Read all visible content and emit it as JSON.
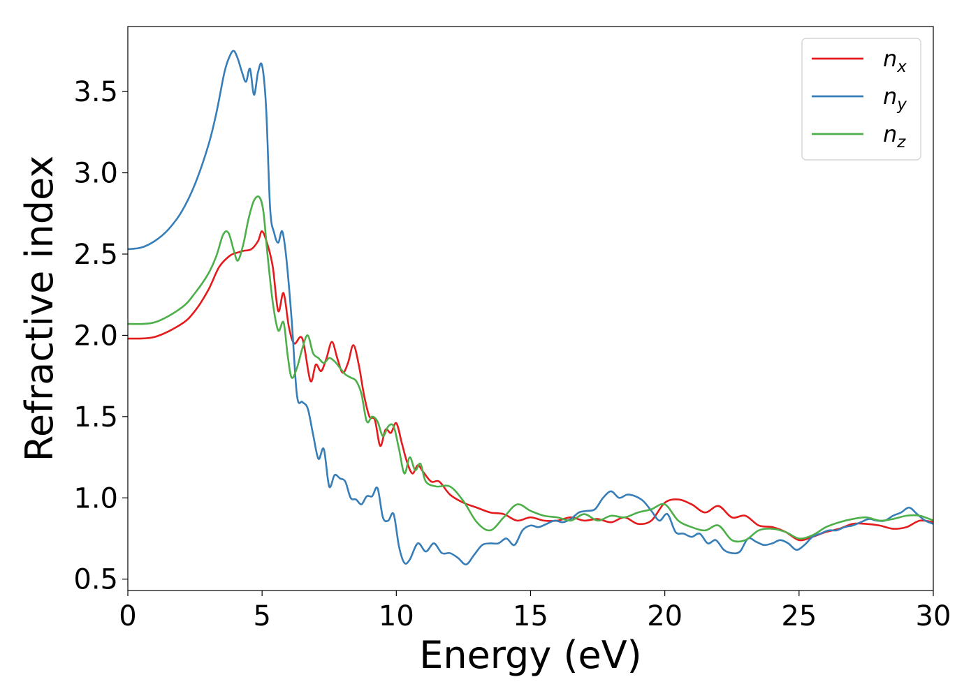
{
  "chart_data": {
    "type": "line",
    "title": "",
    "xlabel": "Energy (eV)",
    "ylabel": "Refractive index",
    "xlim": [
      0,
      30
    ],
    "ylim": [
      0.43,
      3.9
    ],
    "xticks": [
      0,
      5,
      10,
      15,
      20,
      25,
      30
    ],
    "xtick_labels": [
      "0",
      "5",
      "10",
      "15",
      "20",
      "25",
      "30"
    ],
    "yticks": [
      0.5,
      1.0,
      1.5,
      2.0,
      2.5,
      3.0,
      3.5
    ],
    "ytick_labels": [
      "0.5",
      "1.0",
      "1.5",
      "2.0",
      "2.5",
      "3.0",
      "3.5"
    ],
    "grid": false,
    "legend_position": "top-right",
    "series": [
      {
        "name": "n_x",
        "label_base": "n",
        "label_sub": "x",
        "color": "#e41a1c",
        "x": [
          0,
          1,
          2,
          2.5,
          3,
          3.4,
          3.8,
          4.1,
          4.3,
          4.6,
          4.85,
          5.0,
          5.2,
          5.4,
          5.6,
          5.8,
          6.0,
          6.2,
          6.5,
          6.8,
          7.0,
          7.2,
          7.4,
          7.6,
          7.8,
          8.0,
          8.2,
          8.4,
          8.6,
          8.8,
          9.0,
          9.2,
          9.4,
          9.6,
          9.8,
          10.0,
          10.2,
          10.4,
          10.6,
          10.8,
          11.0,
          11.3,
          11.6,
          12.0,
          12.5,
          13.0,
          13.5,
          14.0,
          14.5,
          15.0,
          15.5,
          16.0,
          16.5,
          17.0,
          17.5,
          18.0,
          18.5,
          19.0,
          19.5,
          20.0,
          20.5,
          21.0,
          21.5,
          22.0,
          22.5,
          23.0,
          23.5,
          24.0,
          24.5,
          25.0,
          25.5,
          26.0,
          26.5,
          27.0,
          27.5,
          28.0,
          28.5,
          29.0,
          29.5,
          30.0
        ],
        "values": [
          1.98,
          1.99,
          2.07,
          2.15,
          2.28,
          2.42,
          2.49,
          2.51,
          2.52,
          2.53,
          2.58,
          2.64,
          2.56,
          2.42,
          2.15,
          2.26,
          2.05,
          1.95,
          1.98,
          1.72,
          1.82,
          1.78,
          1.86,
          1.96,
          1.86,
          1.77,
          1.83,
          1.94,
          1.82,
          1.63,
          1.5,
          1.48,
          1.32,
          1.42,
          1.4,
          1.46,
          1.34,
          1.22,
          1.15,
          1.2,
          1.16,
          1.1,
          1.1,
          1.02,
          0.97,
          0.94,
          0.91,
          0.9,
          0.86,
          0.88,
          0.86,
          0.86,
          0.88,
          0.86,
          0.87,
          0.85,
          0.88,
          0.84,
          0.86,
          0.97,
          0.99,
          0.96,
          0.91,
          0.95,
          0.88,
          0.89,
          0.83,
          0.82,
          0.79,
          0.74,
          0.76,
          0.79,
          0.81,
          0.84,
          0.84,
          0.83,
          0.81,
          0.82,
          0.86,
          0.85
        ]
      },
      {
        "name": "n_y",
        "label_base": "n",
        "label_sub": "y",
        "color": "#377eb8",
        "x": [
          0,
          0.5,
          1,
          1.5,
          2,
          2.5,
          3,
          3.3,
          3.6,
          3.8,
          3.95,
          4.1,
          4.25,
          4.4,
          4.55,
          4.7,
          4.85,
          5.0,
          5.15,
          5.3,
          5.45,
          5.6,
          5.75,
          5.9,
          6.1,
          6.3,
          6.5,
          6.7,
          6.9,
          7.1,
          7.3,
          7.5,
          7.7,
          7.9,
          8.1,
          8.3,
          8.5,
          8.7,
          8.9,
          9.1,
          9.3,
          9.5,
          9.7,
          9.9,
          10.1,
          10.3,
          10.5,
          10.8,
          11.1,
          11.4,
          11.7,
          12.0,
          12.3,
          12.6,
          12.9,
          13.2,
          13.5,
          13.8,
          14.1,
          14.4,
          14.7,
          15.0,
          15.3,
          15.6,
          15.9,
          16.2,
          16.5,
          16.8,
          17.1,
          17.4,
          17.7,
          18.0,
          18.3,
          18.6,
          18.9,
          19.2,
          19.5,
          19.8,
          20.1,
          20.4,
          20.7,
          21.0,
          21.3,
          21.6,
          21.9,
          22.2,
          22.5,
          22.8,
          23.1,
          23.4,
          23.7,
          24.0,
          24.3,
          24.6,
          24.9,
          25.2,
          25.5,
          25.8,
          26.1,
          26.4,
          26.7,
          27.0,
          27.3,
          27.6,
          27.9,
          28.2,
          28.5,
          28.8,
          29.1,
          29.4,
          29.7,
          30.0
        ],
        "values": [
          2.53,
          2.54,
          2.58,
          2.65,
          2.76,
          2.93,
          3.17,
          3.37,
          3.62,
          3.72,
          3.75,
          3.7,
          3.62,
          3.56,
          3.64,
          3.48,
          3.62,
          3.66,
          3.4,
          2.78,
          2.63,
          2.57,
          2.64,
          2.48,
          2.1,
          1.63,
          1.59,
          1.55,
          1.39,
          1.24,
          1.3,
          1.07,
          1.14,
          1.12,
          1.1,
          1.0,
          0.99,
          0.96,
          1.01,
          1.01,
          1.06,
          0.88,
          0.86,
          0.9,
          0.7,
          0.6,
          0.62,
          0.72,
          0.67,
          0.72,
          0.66,
          0.66,
          0.63,
          0.59,
          0.65,
          0.71,
          0.72,
          0.72,
          0.75,
          0.71,
          0.8,
          0.83,
          0.82,
          0.84,
          0.86,
          0.85,
          0.87,
          0.91,
          0.92,
          0.93,
          1.0,
          1.04,
          1.0,
          1.02,
          1.01,
          0.98,
          0.92,
          0.86,
          0.9,
          0.79,
          0.78,
          0.76,
          0.78,
          0.72,
          0.74,
          0.68,
          0.66,
          0.67,
          0.75,
          0.73,
          0.71,
          0.72,
          0.74,
          0.72,
          0.68,
          0.71,
          0.76,
          0.78,
          0.8,
          0.8,
          0.82,
          0.83,
          0.85,
          0.87,
          0.86,
          0.86,
          0.89,
          0.91,
          0.94,
          0.9,
          0.86,
          0.84
        ]
      },
      {
        "name": "n_z",
        "label_base": "n",
        "label_sub": "z",
        "color": "#4daf4a",
        "x": [
          0,
          1,
          2,
          2.5,
          3,
          3.3,
          3.55,
          3.75,
          3.95,
          4.1,
          4.3,
          4.5,
          4.7,
          4.9,
          5.05,
          5.2,
          5.4,
          5.6,
          5.8,
          5.95,
          6.1,
          6.3,
          6.5,
          6.7,
          6.9,
          7.1,
          7.3,
          7.5,
          7.7,
          7.9,
          8.1,
          8.3,
          8.5,
          8.7,
          8.9,
          9.1,
          9.3,
          9.5,
          9.7,
          9.9,
          10.1,
          10.3,
          10.5,
          10.7,
          10.9,
          11.1,
          11.5,
          12.0,
          12.5,
          13.0,
          13.5,
          14.0,
          14.5,
          15.0,
          15.5,
          16.0,
          16.5,
          17.0,
          17.5,
          18.0,
          18.5,
          19.0,
          19.5,
          20.0,
          20.5,
          21.0,
          21.5,
          22.0,
          22.5,
          23.0,
          23.5,
          24.0,
          24.5,
          25.0,
          25.5,
          26.0,
          26.5,
          27.0,
          27.5,
          28.0,
          28.5,
          29.0,
          29.5,
          30.0
        ],
        "values": [
          2.07,
          2.08,
          2.17,
          2.26,
          2.38,
          2.49,
          2.62,
          2.63,
          2.52,
          2.46,
          2.56,
          2.72,
          2.83,
          2.85,
          2.76,
          2.5,
          2.2,
          2.03,
          2.08,
          1.88,
          1.74,
          1.8,
          1.92,
          2.0,
          1.89,
          1.86,
          1.83,
          1.86,
          1.84,
          1.8,
          1.76,
          1.74,
          1.72,
          1.64,
          1.47,
          1.5,
          1.47,
          1.38,
          1.44,
          1.44,
          1.3,
          1.15,
          1.25,
          1.17,
          1.21,
          1.1,
          1.07,
          1.07,
          0.98,
          0.85,
          0.8,
          0.88,
          0.96,
          0.92,
          0.89,
          0.88,
          0.86,
          0.9,
          0.86,
          0.89,
          0.88,
          0.91,
          0.93,
          0.96,
          0.86,
          0.82,
          0.8,
          0.83,
          0.74,
          0.74,
          0.8,
          0.81,
          0.79,
          0.75,
          0.77,
          0.82,
          0.85,
          0.87,
          0.88,
          0.86,
          0.87,
          0.89,
          0.89,
          0.86
        ]
      }
    ]
  }
}
